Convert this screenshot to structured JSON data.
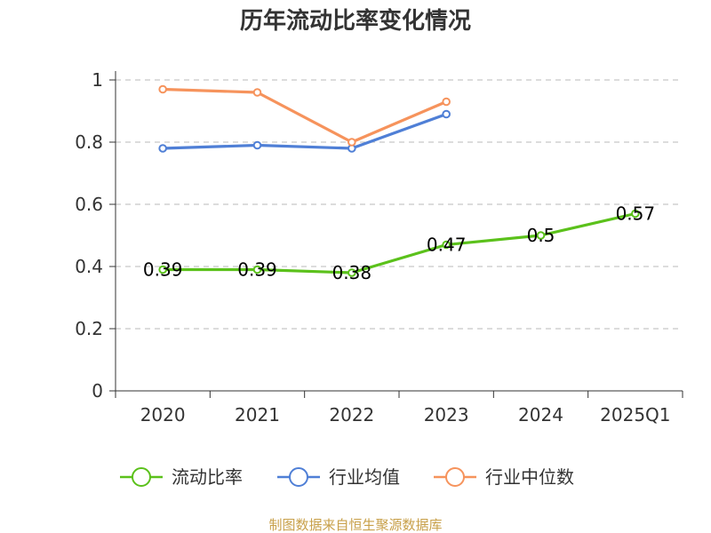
{
  "chart_data": {
    "type": "line",
    "title": "历年流动比率变化情况",
    "xlabel": "",
    "ylabel": "",
    "categories": [
      "2020",
      "2021",
      "2022",
      "2023",
      "2024",
      "2025Q1"
    ],
    "ylim": [
      0,
      1
    ],
    "yticks": [
      "0",
      "0.2",
      "0.4",
      "0.6",
      "0.8",
      "1"
    ],
    "grid": true,
    "legend_position": "bottom",
    "series": [
      {
        "name": "流动比率",
        "color": "#5bc11b",
        "values": [
          0.39,
          0.39,
          0.38,
          0.47,
          0.5,
          0.57
        ],
        "labels": [
          "0.39",
          "0.39",
          "0.38",
          "0.47",
          "0.5",
          "0.57"
        ]
      },
      {
        "name": "行业均值",
        "color": "#4f7fd6",
        "values": [
          0.78,
          0.79,
          0.78,
          0.89,
          null,
          null
        ]
      },
      {
        "name": "行业中位数",
        "color": "#f6935c",
        "values": [
          0.97,
          0.96,
          0.8,
          0.93,
          null,
          null
        ]
      }
    ]
  },
  "footer": {
    "source": "制图数据来自恒生聚源数据库"
  }
}
